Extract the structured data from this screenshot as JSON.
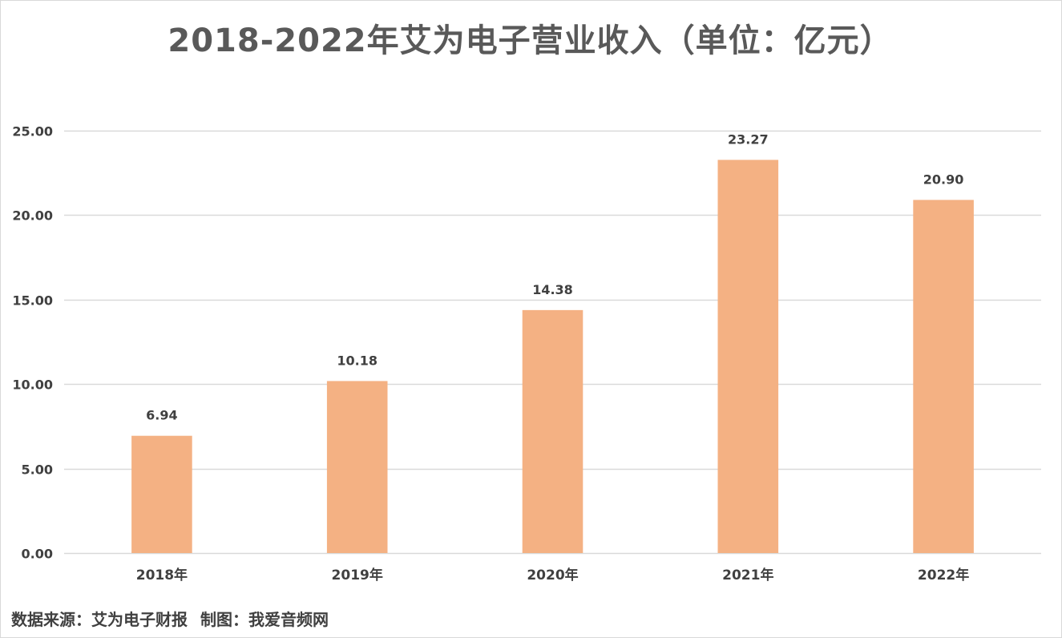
{
  "chart_data": {
    "type": "bar",
    "title": "2018-2022年艾为电子营业收入（单位：亿元）",
    "xlabel": "",
    "ylabel": "",
    "categories": [
      "2018年",
      "2019年",
      "2020年",
      "2021年",
      "2022年"
    ],
    "values": [
      6.94,
      10.18,
      14.38,
      23.27,
      20.9
    ],
    "value_labels": [
      "6.94",
      "10.18",
      "14.38",
      "23.27",
      "20.90"
    ],
    "ylim": [
      0,
      25
    ],
    "yticks": [
      0,
      5,
      10,
      15,
      20,
      25
    ],
    "ytick_labels": [
      "0.00",
      "5.00",
      "10.00",
      "15.00",
      "20.00",
      "25.00"
    ],
    "grid": true,
    "legend": "none",
    "bar_color": "#f4b183",
    "grid_color": "#d9d9d9"
  },
  "footer": {
    "source": "数据来源：艾为电子财报",
    "credit": "制图：我爱音频网"
  }
}
